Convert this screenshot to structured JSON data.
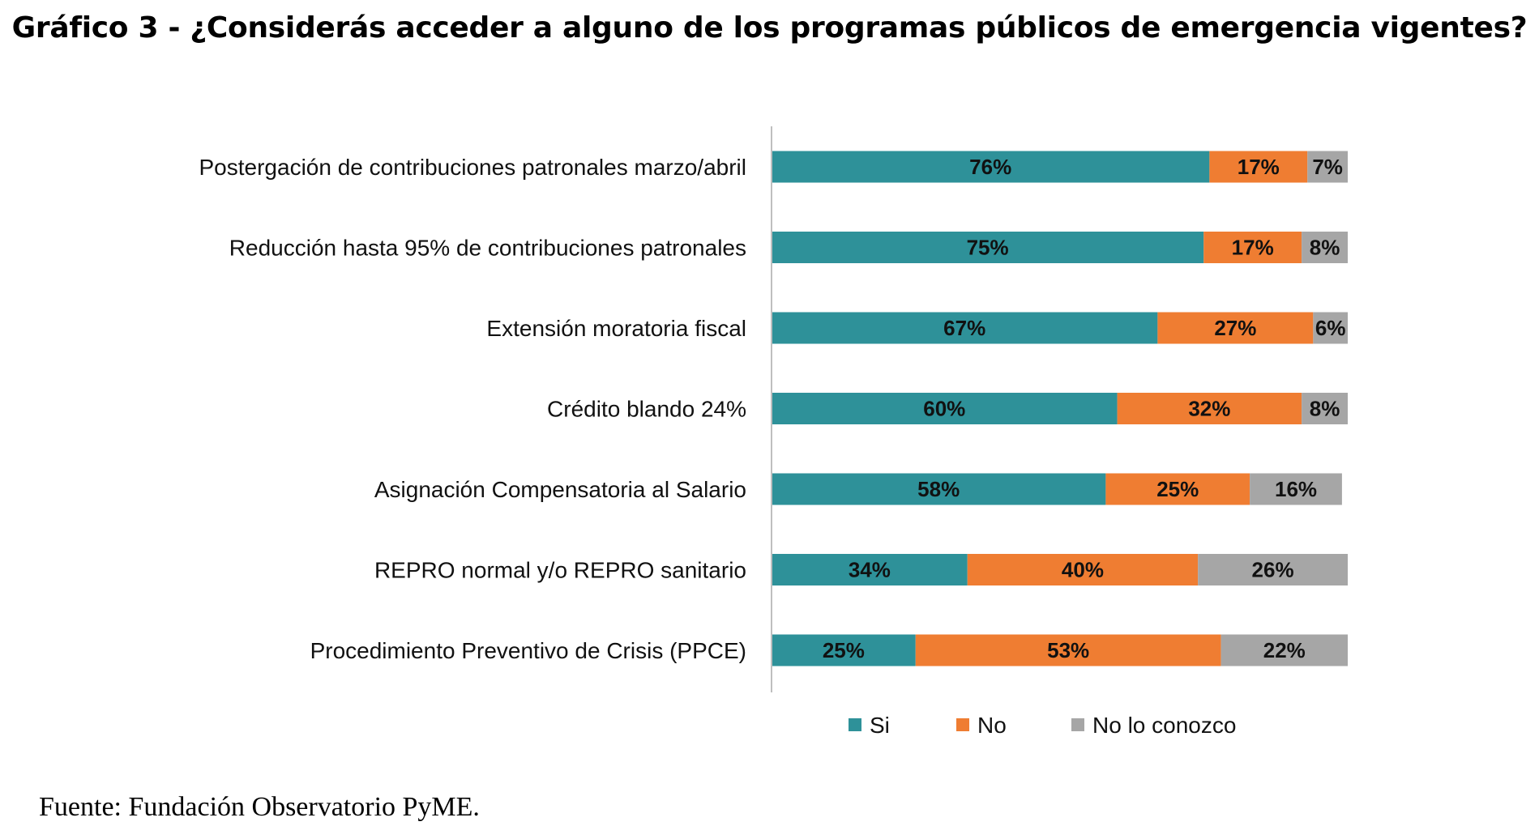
{
  "page": {
    "title": "Gráfico 3 - ¿Considerás acceder a alguno de los programas públicos de emergencia vigentes?",
    "source": "Fuente: Fundación Observatorio PyME."
  },
  "chart_data": {
    "type": "bar",
    "orientation": "horizontal",
    "stacked": true,
    "title": "Gráfico 3 - ¿Considerás acceder a alguno de los programas públicos de emergencia vigentes?",
    "xlabel": "",
    "ylabel": "",
    "xlim": [
      0,
      100
    ],
    "grid": false,
    "legend_position": "bottom",
    "categories": [
      "Postergación de contribuciones patronales marzo/abril",
      "Reducción hasta 95% de contribuciones patronales",
      "Extensión moratoria fiscal",
      "Crédito blando 24%",
      "Asignación Compensatoria al Salario",
      "REPRO normal y/o REPRO sanitario",
      "Procedimiento Preventivo de Crisis (PPCE)"
    ],
    "series": [
      {
        "name": "Si",
        "color": "#2e9199",
        "values": [
          76,
          75,
          67,
          60,
          58,
          34,
          25
        ]
      },
      {
        "name": "No",
        "color": "#ef7d32",
        "values": [
          17,
          17,
          27,
          32,
          25,
          40,
          53
        ]
      },
      {
        "name": "No lo conozco",
        "color": "#a6a6a6",
        "values": [
          7,
          8,
          6,
          8,
          16,
          26,
          22
        ]
      }
    ],
    "value_suffix": "%"
  }
}
